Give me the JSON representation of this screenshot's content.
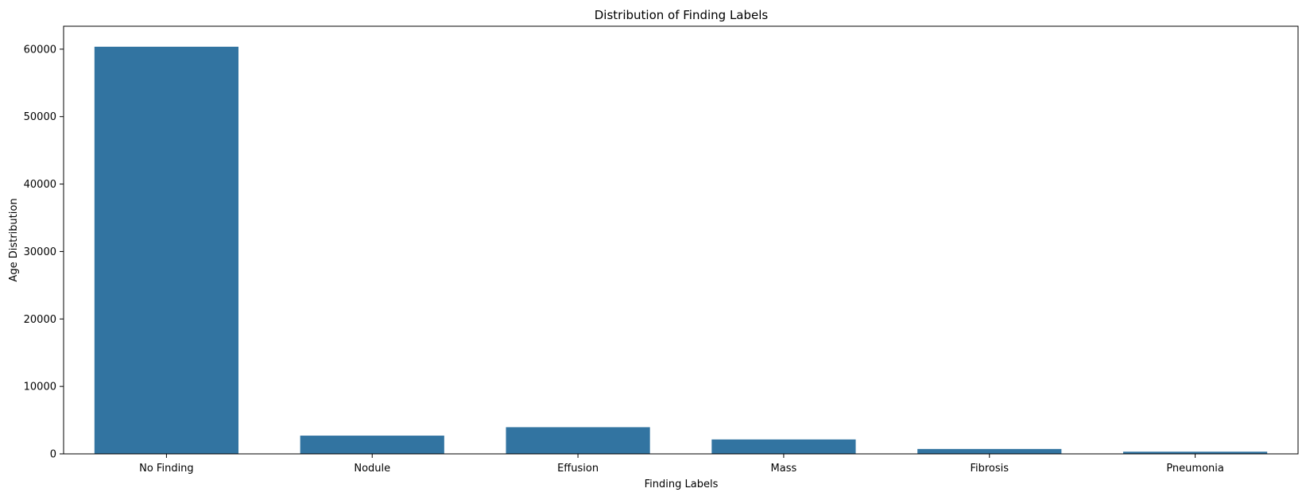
{
  "chart_data": {
    "type": "bar",
    "title": "Distribution of Finding Labels",
    "xlabel": "Finding Labels",
    "ylabel": "Age Distribution",
    "categories": [
      "No Finding",
      "Nodule",
      "Effusion",
      "Mass",
      "Fibrosis",
      "Pneumonia"
    ],
    "values": [
      60361,
      2705,
      3955,
      2139,
      727,
      322
    ],
    "ylim": [
      0,
      63400
    ],
    "yticks": [
      0,
      10000,
      20000,
      30000,
      40000,
      50000,
      60000
    ],
    "bar_color": "#3274a1",
    "grid": false,
    "legend": false
  }
}
